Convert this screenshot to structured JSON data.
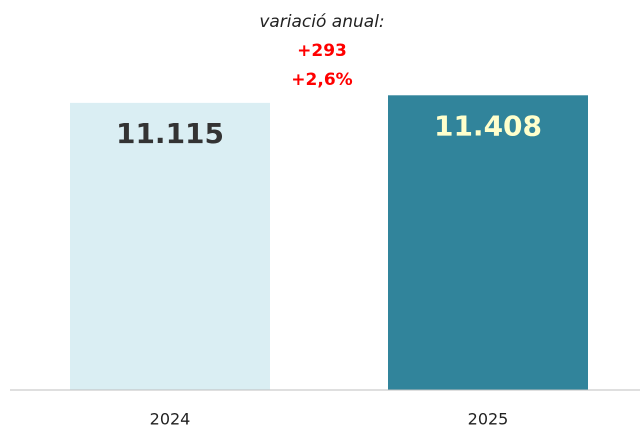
{
  "chart_data": {
    "type": "bar",
    "categories": [
      "2024",
      "2025"
    ],
    "values": [
      11115,
      11408
    ],
    "value_labels": [
      "11.115",
      "11.408"
    ],
    "colors": [
      "#daeef3",
      "#31849b"
    ],
    "label_colors": [
      "#333333",
      "#ffffcc"
    ],
    "ylim": [
      0,
      12000
    ],
    "annotations": [
      "variació anual:",
      "+293",
      "+2,6%"
    ]
  }
}
